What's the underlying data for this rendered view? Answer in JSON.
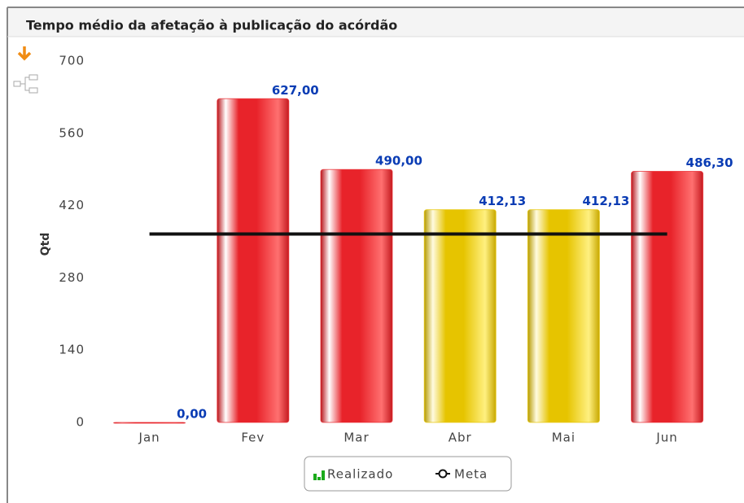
{
  "chart_data": {
    "type": "bar",
    "title": "Tempo médio da afetação à publicação do acórdão",
    "y_label": "Qtd",
    "categories": [
      "Jan",
      "Fev",
      "Mar",
      "Abr",
      "Mai",
      "Jun"
    ],
    "series": [
      {
        "name": "Realizado",
        "type": "bar",
        "color": "#1aaa1a",
        "colors": [
          "#e8232a",
          "#e8232a",
          "#e8232a",
          "#e6c400",
          "#e6c400",
          "#e8232a"
        ],
        "values": [
          0,
          627,
          490,
          412.13,
          412.13,
          486.3
        ],
        "value_labels": [
          "0,00",
          "627,00",
          "490,00",
          "412,13",
          "412,13",
          "486,30"
        ]
      },
      {
        "name": "Meta",
        "type": "line",
        "color": "#111111",
        "values": [
          365,
          365,
          365,
          365,
          365,
          365
        ]
      }
    ],
    "ylim": [
      0,
      700
    ],
    "yticks": [
      0,
      140,
      280,
      420,
      560,
      700
    ],
    "grid": false,
    "legend": "bottom"
  }
}
